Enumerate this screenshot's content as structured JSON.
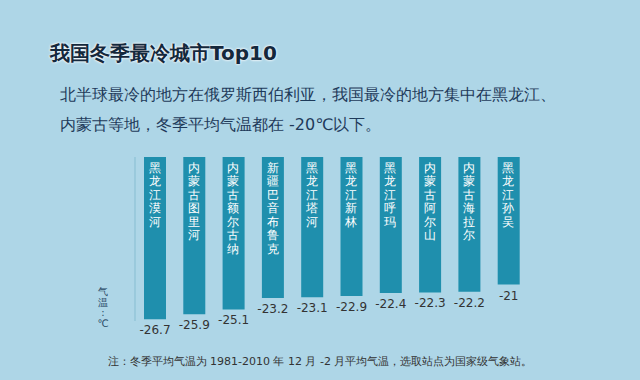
{
  "chart_data": {
    "type": "bar",
    "title": "我国冬季最冷城市Top10",
    "subtitle": "北半球最冷的地方在俄罗斯西伯利亚，我国最冷的地方集中在黑龙江、内蒙古等地，冬季平均气温都在 -20℃以下。",
    "y_label": "气温:℃",
    "note": "注：冬季平均气温为 1981-2010 年 12 月 -2 月平均气温，选取站点为国家级气象站。",
    "categories": [
      "黑龙江漠河",
      "内蒙古图里河",
      "内蒙古额尔古纳",
      "新疆巴音布鲁克",
      "黑龙江塔河",
      "黑龙江新林",
      "黑龙江呼玛",
      "内蒙古阿尔山",
      "内蒙古海拉尔",
      "黑龙江孙吴"
    ],
    "values": [
      -26.7,
      -25.9,
      -25.1,
      -23.2,
      -23.1,
      -22.9,
      -22.4,
      -22.3,
      -22.2,
      -21
    ],
    "color": "#1f8fad",
    "ylim": [
      -27,
      0
    ],
    "yticks": [
      -27,
      0
    ],
    "data_labels": true,
    "tick_labels": "x",
    "grid": false
  }
}
